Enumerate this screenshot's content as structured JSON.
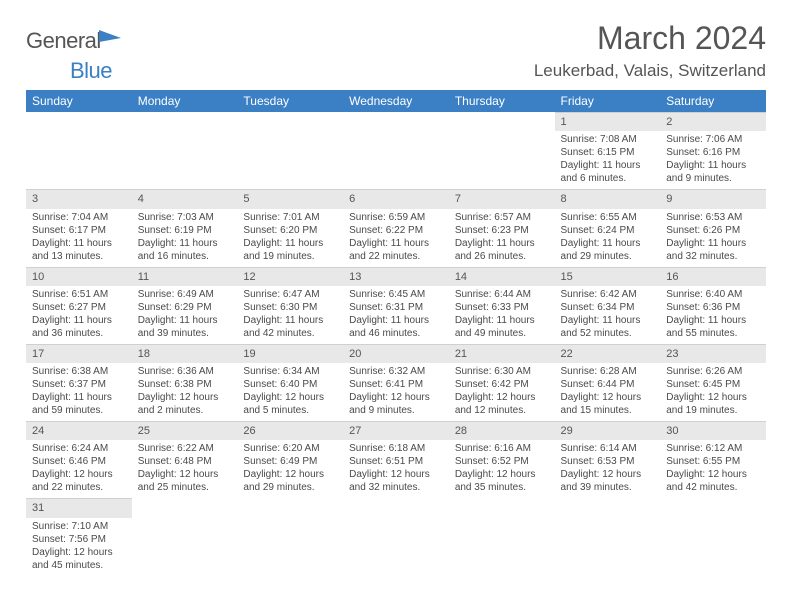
{
  "logo": {
    "text_gray": "General",
    "text_blue": "Blue"
  },
  "title": "March 2024",
  "location": "Leukerbad, Valais, Switzerland",
  "colors": {
    "brand_blue": "#3b7fc4",
    "header_text": "#ffffff",
    "daybar_bg": "#e8e8e8",
    "body_text": "#4a4a4a",
    "title_text": "#555555"
  },
  "day_headers": [
    "Sunday",
    "Monday",
    "Tuesday",
    "Wednesday",
    "Thursday",
    "Friday",
    "Saturday"
  ],
  "weeks": [
    [
      {},
      {},
      {},
      {},
      {},
      {
        "num": "1",
        "sunrise": "Sunrise: 7:08 AM",
        "sunset": "Sunset: 6:15 PM",
        "daylight": "Daylight: 11 hours and 6 minutes."
      },
      {
        "num": "2",
        "sunrise": "Sunrise: 7:06 AM",
        "sunset": "Sunset: 6:16 PM",
        "daylight": "Daylight: 11 hours and 9 minutes."
      }
    ],
    [
      {
        "num": "3",
        "sunrise": "Sunrise: 7:04 AM",
        "sunset": "Sunset: 6:17 PM",
        "daylight": "Daylight: 11 hours and 13 minutes."
      },
      {
        "num": "4",
        "sunrise": "Sunrise: 7:03 AM",
        "sunset": "Sunset: 6:19 PM",
        "daylight": "Daylight: 11 hours and 16 minutes."
      },
      {
        "num": "5",
        "sunrise": "Sunrise: 7:01 AM",
        "sunset": "Sunset: 6:20 PM",
        "daylight": "Daylight: 11 hours and 19 minutes."
      },
      {
        "num": "6",
        "sunrise": "Sunrise: 6:59 AM",
        "sunset": "Sunset: 6:22 PM",
        "daylight": "Daylight: 11 hours and 22 minutes."
      },
      {
        "num": "7",
        "sunrise": "Sunrise: 6:57 AM",
        "sunset": "Sunset: 6:23 PM",
        "daylight": "Daylight: 11 hours and 26 minutes."
      },
      {
        "num": "8",
        "sunrise": "Sunrise: 6:55 AM",
        "sunset": "Sunset: 6:24 PM",
        "daylight": "Daylight: 11 hours and 29 minutes."
      },
      {
        "num": "9",
        "sunrise": "Sunrise: 6:53 AM",
        "sunset": "Sunset: 6:26 PM",
        "daylight": "Daylight: 11 hours and 32 minutes."
      }
    ],
    [
      {
        "num": "10",
        "sunrise": "Sunrise: 6:51 AM",
        "sunset": "Sunset: 6:27 PM",
        "daylight": "Daylight: 11 hours and 36 minutes."
      },
      {
        "num": "11",
        "sunrise": "Sunrise: 6:49 AM",
        "sunset": "Sunset: 6:29 PM",
        "daylight": "Daylight: 11 hours and 39 minutes."
      },
      {
        "num": "12",
        "sunrise": "Sunrise: 6:47 AM",
        "sunset": "Sunset: 6:30 PM",
        "daylight": "Daylight: 11 hours and 42 minutes."
      },
      {
        "num": "13",
        "sunrise": "Sunrise: 6:45 AM",
        "sunset": "Sunset: 6:31 PM",
        "daylight": "Daylight: 11 hours and 46 minutes."
      },
      {
        "num": "14",
        "sunrise": "Sunrise: 6:44 AM",
        "sunset": "Sunset: 6:33 PM",
        "daylight": "Daylight: 11 hours and 49 minutes."
      },
      {
        "num": "15",
        "sunrise": "Sunrise: 6:42 AM",
        "sunset": "Sunset: 6:34 PM",
        "daylight": "Daylight: 11 hours and 52 minutes."
      },
      {
        "num": "16",
        "sunrise": "Sunrise: 6:40 AM",
        "sunset": "Sunset: 6:36 PM",
        "daylight": "Daylight: 11 hours and 55 minutes."
      }
    ],
    [
      {
        "num": "17",
        "sunrise": "Sunrise: 6:38 AM",
        "sunset": "Sunset: 6:37 PM",
        "daylight": "Daylight: 11 hours and 59 minutes."
      },
      {
        "num": "18",
        "sunrise": "Sunrise: 6:36 AM",
        "sunset": "Sunset: 6:38 PM",
        "daylight": "Daylight: 12 hours and 2 minutes."
      },
      {
        "num": "19",
        "sunrise": "Sunrise: 6:34 AM",
        "sunset": "Sunset: 6:40 PM",
        "daylight": "Daylight: 12 hours and 5 minutes."
      },
      {
        "num": "20",
        "sunrise": "Sunrise: 6:32 AM",
        "sunset": "Sunset: 6:41 PM",
        "daylight": "Daylight: 12 hours and 9 minutes."
      },
      {
        "num": "21",
        "sunrise": "Sunrise: 6:30 AM",
        "sunset": "Sunset: 6:42 PM",
        "daylight": "Daylight: 12 hours and 12 minutes."
      },
      {
        "num": "22",
        "sunrise": "Sunrise: 6:28 AM",
        "sunset": "Sunset: 6:44 PM",
        "daylight": "Daylight: 12 hours and 15 minutes."
      },
      {
        "num": "23",
        "sunrise": "Sunrise: 6:26 AM",
        "sunset": "Sunset: 6:45 PM",
        "daylight": "Daylight: 12 hours and 19 minutes."
      }
    ],
    [
      {
        "num": "24",
        "sunrise": "Sunrise: 6:24 AM",
        "sunset": "Sunset: 6:46 PM",
        "daylight": "Daylight: 12 hours and 22 minutes."
      },
      {
        "num": "25",
        "sunrise": "Sunrise: 6:22 AM",
        "sunset": "Sunset: 6:48 PM",
        "daylight": "Daylight: 12 hours and 25 minutes."
      },
      {
        "num": "26",
        "sunrise": "Sunrise: 6:20 AM",
        "sunset": "Sunset: 6:49 PM",
        "daylight": "Daylight: 12 hours and 29 minutes."
      },
      {
        "num": "27",
        "sunrise": "Sunrise: 6:18 AM",
        "sunset": "Sunset: 6:51 PM",
        "daylight": "Daylight: 12 hours and 32 minutes."
      },
      {
        "num": "28",
        "sunrise": "Sunrise: 6:16 AM",
        "sunset": "Sunset: 6:52 PM",
        "daylight": "Daylight: 12 hours and 35 minutes."
      },
      {
        "num": "29",
        "sunrise": "Sunrise: 6:14 AM",
        "sunset": "Sunset: 6:53 PM",
        "daylight": "Daylight: 12 hours and 39 minutes."
      },
      {
        "num": "30",
        "sunrise": "Sunrise: 6:12 AM",
        "sunset": "Sunset: 6:55 PM",
        "daylight": "Daylight: 12 hours and 42 minutes."
      }
    ],
    [
      {
        "num": "31",
        "sunrise": "Sunrise: 7:10 AM",
        "sunset": "Sunset: 7:56 PM",
        "daylight": "Daylight: 12 hours and 45 minutes."
      },
      {},
      {},
      {},
      {},
      {},
      {}
    ]
  ]
}
